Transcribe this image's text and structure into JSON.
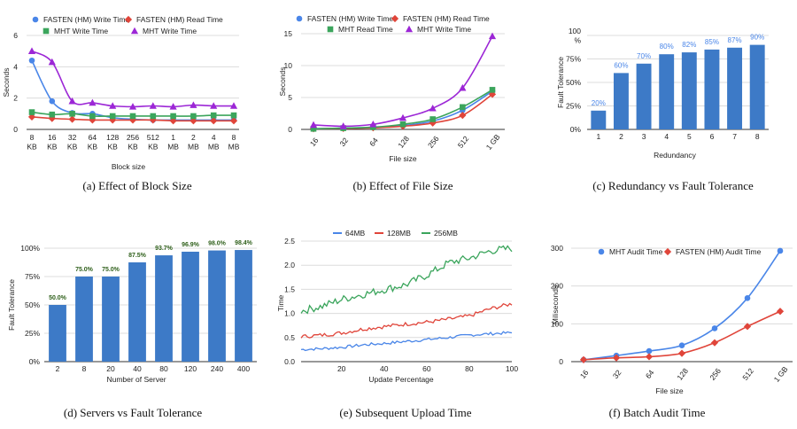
{
  "colors": {
    "blue": "#4a86e8",
    "red": "#e0453a",
    "green": "#3ba55c",
    "purple": "#9c27d6",
    "bar": "#3d7ac7",
    "dark_green_label": "#2e5f1a"
  },
  "chart_data": [
    {
      "id": "a",
      "type": "line",
      "caption": "(a) Effect of Block Size",
      "xlabel": "Block size",
      "ylabel": "Seconds",
      "categories": [
        "8\nKB",
        "16\nKB",
        "32\nKB",
        "64\nKB",
        "128\nKB",
        "256\nKB",
        "512\nKB",
        "1\nMB",
        "2\nMB",
        "4\nMB",
        "8\nMB"
      ],
      "yticks": [
        0,
        2,
        4,
        6
      ],
      "ylim": [
        0,
        6
      ],
      "series": [
        {
          "name": "FASTEN (HM) Write Time",
          "color": "blue",
          "marker": "circle",
          "values": [
            4.4,
            1.8,
            1.05,
            1.0,
            0.75,
            0.65,
            0.6,
            0.6,
            0.6,
            0.6,
            0.6
          ]
        },
        {
          "name": "FASTEN (HM) Read Time",
          "color": "red",
          "marker": "diamond",
          "values": [
            0.8,
            0.7,
            0.65,
            0.6,
            0.6,
            0.6,
            0.6,
            0.55,
            0.55,
            0.55,
            0.55
          ]
        },
        {
          "name": "MHT Write Time",
          "color": "green",
          "marker": "square",
          "values": [
            1.1,
            0.95,
            1.0,
            0.85,
            0.85,
            0.85,
            0.85,
            0.85,
            0.85,
            0.9,
            0.9
          ]
        },
        {
          "name": "MHT Write Time",
          "color": "purple",
          "marker": "triangle",
          "values": [
            5.0,
            4.3,
            1.8,
            1.7,
            1.5,
            1.45,
            1.5,
            1.45,
            1.55,
            1.5,
            1.5
          ]
        }
      ]
    },
    {
      "id": "b",
      "type": "line",
      "caption": "(b) Effect of File Size",
      "xlabel": "File size",
      "ylabel": "Seconds",
      "categories": [
        "16",
        "32",
        "64",
        "128",
        "256",
        "512",
        "1 GB"
      ],
      "yticks": [
        0,
        5,
        10,
        15
      ],
      "ylim": [
        0,
        15
      ],
      "series": [
        {
          "name": "FASTEN (HM) Write Time",
          "color": "blue",
          "marker": "circle",
          "values": [
            0.1,
            0.2,
            0.3,
            0.6,
            1.3,
            3.0,
            6.0
          ]
        },
        {
          "name": "FASTEN (HM) Read Time",
          "color": "red",
          "marker": "diamond",
          "values": [
            0.1,
            0.15,
            0.25,
            0.5,
            1.0,
            2.2,
            5.5
          ]
        },
        {
          "name": "MHT Read Time",
          "color": "green",
          "marker": "square",
          "values": [
            0.1,
            0.2,
            0.35,
            0.8,
            1.6,
            3.5,
            6.2
          ]
        },
        {
          "name": "MHT Write Time",
          "color": "purple",
          "marker": "triangle",
          "values": [
            0.7,
            0.5,
            0.8,
            1.8,
            3.3,
            6.5,
            14.6
          ]
        }
      ]
    },
    {
      "id": "c",
      "type": "bar",
      "caption": "(c) Redundancy vs Fault Tolerance",
      "xlabel": "Redundancy",
      "ylabel": "Fault Tolerance",
      "categories": [
        "1",
        "2",
        "3",
        "4",
        "5",
        "6",
        "7",
        "8"
      ],
      "values": [
        20,
        60,
        70,
        80,
        82,
        85,
        87,
        90
      ],
      "labels": [
        "20%",
        "60%",
        "70%",
        "80%",
        "82%",
        "85%",
        "87%",
        "90%"
      ],
      "yticks": [
        "0%",
        "25%",
        "50%",
        "75%",
        "100\n%"
      ],
      "ylim": [
        0,
        100
      ]
    },
    {
      "id": "d",
      "type": "bar",
      "caption": "(d) Servers vs Fault Tolerance",
      "xlabel": "Number of Server",
      "ylabel": "Fault Tolerance",
      "categories": [
        "2",
        "8",
        "20",
        "40",
        "80",
        "120",
        "240",
        "400"
      ],
      "values": [
        50,
        75,
        75,
        87.5,
        93.7,
        96.9,
        98.0,
        98.4
      ],
      "labels": [
        "50.0%",
        "75.0%",
        "75.0%",
        "87.5%",
        "93.7%",
        "96.9%",
        "98.0%",
        "98.4%"
      ],
      "yticks": [
        "0%",
        "25%",
        "50%",
        "75%",
        "100%"
      ],
      "ylim": [
        0,
        100
      ]
    },
    {
      "id": "e",
      "type": "line",
      "caption": "(e) Subsequent Upload Time",
      "xlabel": "Update Percentage",
      "ylabel": "Time",
      "xticks": [
        20,
        40,
        60,
        80,
        100
      ],
      "xlim": [
        1,
        100
      ],
      "yticks": [
        "0.0",
        "0.5",
        "1.0",
        "1.5",
        "2.0",
        "2.5"
      ],
      "ylim": [
        0,
        2.5
      ],
      "series": [
        {
          "name": "64MB",
          "color": "blue",
          "values": [
            0.25,
            0.27,
            0.3,
            0.35,
            0.38,
            0.42,
            0.46,
            0.5,
            0.55,
            0.58,
            0.6
          ],
          "noise": 0.03
        },
        {
          "name": "128MB",
          "color": "red",
          "values": [
            0.52,
            0.55,
            0.6,
            0.68,
            0.73,
            0.78,
            0.82,
            0.88,
            0.95,
            1.1,
            1.2
          ],
          "noise": 0.04
        },
        {
          "name": "256MB",
          "color": "green",
          "values": [
            1.05,
            1.15,
            1.3,
            1.4,
            1.5,
            1.6,
            1.8,
            2.05,
            2.15,
            2.3,
            2.35
          ],
          "noise": 0.08
        }
      ]
    },
    {
      "id": "f",
      "type": "line",
      "caption": "(f) Batch Audit Time",
      "xlabel": "File size",
      "ylabel": "Miliseconds",
      "categories": [
        "16",
        "32",
        "64",
        "128",
        "256",
        "512",
        "1 GB"
      ],
      "yticks": [
        0,
        100,
        200,
        300
      ],
      "ylim": [
        0,
        300
      ],
      "series": [
        {
          "name": "MHT Audit Time",
          "color": "blue",
          "marker": "circle",
          "values": [
            5,
            16,
            28,
            43,
            88,
            168,
            293
          ]
        },
        {
          "name": "FASTEN (HM) Audit Time",
          "color": "red",
          "marker": "diamond",
          "values": [
            5,
            10,
            13,
            22,
            50,
            93,
            133
          ]
        }
      ]
    }
  ]
}
